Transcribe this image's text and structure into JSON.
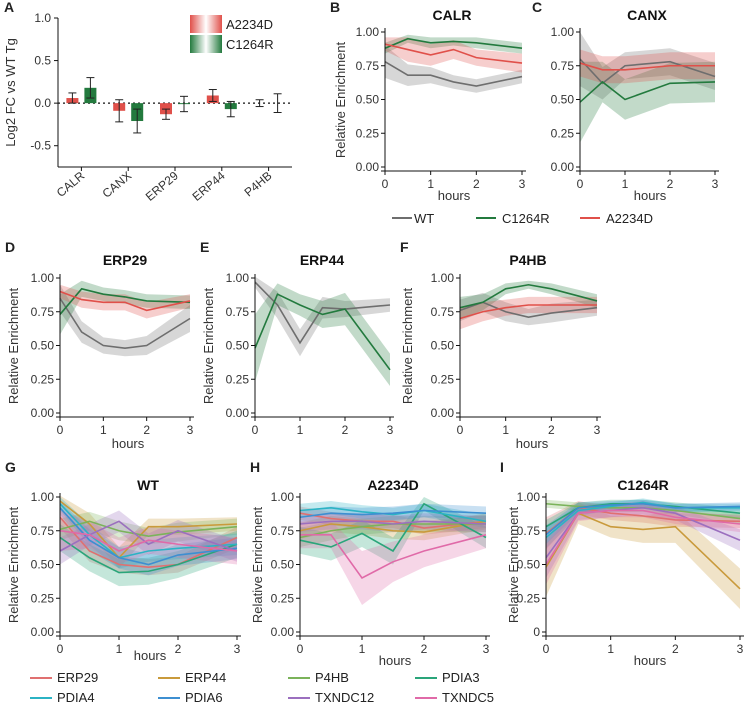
{
  "colors": {
    "WT": "#6e6e6e",
    "C1264R": "#237a3e",
    "A2234D": "#e0504a",
    "ERP29": "#e07070",
    "ERP44": "#c99a3b",
    "P4HB": "#7bb35a",
    "PDIA3": "#2aa57a",
    "PDIA4": "#2bb3c4",
    "PDIA6": "#3d8fd1",
    "TXNDC12": "#9b6fbf",
    "TXNDC5": "#e06aa8"
  },
  "chart_data": [
    {
      "id": "A",
      "panel_label": "A",
      "type": "bar",
      "ylabel": "Log2 FC vs WT Tg",
      "yticks": [
        1.0,
        0.5,
        0.0,
        -0.5
      ],
      "ytick_labels": [
        "1.0",
        "0.5",
        "0.0",
        "-0.5"
      ],
      "ylim": [
        -0.75,
        1.0
      ],
      "categories": [
        "CALR",
        "CANX",
        "ERP29",
        "ERP44",
        "P4HB"
      ],
      "legend": [
        "A2234D",
        "C1264R"
      ],
      "series": [
        {
          "name": "A2234D",
          "values": [
            0.06,
            -0.09,
            -0.13,
            0.09,
            0.0
          ],
          "errors": [
            0.06,
            0.13,
            0.06,
            0.07,
            0.04
          ]
        },
        {
          "name": "C1264R",
          "values": [
            0.18,
            -0.21,
            -0.01,
            -0.07,
            0.0
          ],
          "errors": [
            0.12,
            0.14,
            0.09,
            0.09,
            0.11
          ]
        }
      ]
    },
    {
      "id": "B",
      "panel_label": "B",
      "type": "line",
      "title": "CALR",
      "xlabel": "hours",
      "ylabel": "Relative Enrichment",
      "xticks": [
        0,
        1,
        2,
        3
      ],
      "yticks": [
        0.0,
        0.25,
        0.5,
        0.75,
        1.0
      ],
      "ytick_labels": [
        "0.00",
        "0.25",
        "0.50",
        "0.75",
        "1.00"
      ],
      "x": [
        0,
        0.5,
        1,
        1.5,
        2,
        3
      ],
      "series": [
        {
          "name": "WT",
          "values": [
            0.78,
            0.68,
            0.68,
            0.63,
            0.6,
            0.67
          ],
          "band": [
            0.12,
            0.08,
            0.06,
            0.05,
            0.05,
            0.05
          ]
        },
        {
          "name": "C1264R",
          "values": [
            0.88,
            0.95,
            0.92,
            0.93,
            0.92,
            0.88
          ],
          "band": [
            0.04,
            0.03,
            0.04,
            0.03,
            0.04,
            0.04
          ]
        },
        {
          "name": "A2234D",
          "values": [
            0.91,
            0.87,
            0.83,
            0.87,
            0.81,
            0.77
          ],
          "band": [
            0.05,
            0.09,
            0.08,
            0.07,
            0.06,
            0.07
          ]
        }
      ]
    },
    {
      "id": "C",
      "panel_label": "C",
      "type": "line",
      "title": "CANX",
      "xlabel": "hours",
      "ylabel": "",
      "xticks": [
        0,
        1,
        2,
        3
      ],
      "yticks": [
        0.0,
        0.25,
        0.5,
        0.75,
        1.0
      ],
      "ytick_labels": [
        "0.00",
        "0.25",
        "0.50",
        "0.75",
        "1.00"
      ],
      "x": [
        0,
        0.5,
        1,
        2,
        3
      ],
      "series": [
        {
          "name": "WT",
          "values": [
            0.8,
            0.62,
            0.75,
            0.78,
            0.67
          ],
          "band": [
            0.2,
            0.12,
            0.1,
            0.1,
            0.1
          ]
        },
        {
          "name": "C1264R",
          "values": [
            0.48,
            0.63,
            0.5,
            0.62,
            0.63
          ],
          "band": [
            0.3,
            0.15,
            0.15,
            0.15,
            0.15
          ]
        },
        {
          "name": "A2234D",
          "values": [
            0.77,
            0.72,
            0.72,
            0.75,
            0.75
          ],
          "band": [
            0.1,
            0.1,
            0.1,
            0.1,
            0.1
          ]
        }
      ]
    },
    {
      "id": "D",
      "panel_label": "D",
      "type": "line",
      "title": "ERP29",
      "xlabel": "hours",
      "ylabel": "Relative Enrichment",
      "xticks": [
        0,
        1,
        2,
        3
      ],
      "yticks": [
        0.0,
        0.25,
        0.5,
        0.75,
        1.0
      ],
      "ytick_labels": [
        "0.00",
        "0.25",
        "0.50",
        "0.75",
        "1.00"
      ],
      "x": [
        0,
        0.5,
        1,
        1.5,
        2,
        3
      ],
      "series": [
        {
          "name": "WT",
          "values": [
            0.85,
            0.6,
            0.5,
            0.48,
            0.5,
            0.7
          ],
          "band": [
            0.1,
            0.08,
            0.06,
            0.06,
            0.07,
            0.1
          ]
        },
        {
          "name": "C1264R",
          "values": [
            0.73,
            0.92,
            0.88,
            0.86,
            0.83,
            0.82
          ],
          "band": [
            0.15,
            0.06,
            0.05,
            0.05,
            0.05,
            0.05
          ]
        },
        {
          "name": "A2234D",
          "values": [
            0.9,
            0.84,
            0.82,
            0.82,
            0.76,
            0.83
          ],
          "band": [
            0.05,
            0.06,
            0.06,
            0.06,
            0.06,
            0.05
          ]
        }
      ]
    },
    {
      "id": "E",
      "panel_label": "E",
      "type": "line",
      "title": "ERP44",
      "xlabel": "",
      "ylabel": "Relative Enrichment",
      "xticks": [
        0,
        1,
        2,
        3
      ],
      "yticks": [
        0.0,
        0.25,
        0.5,
        0.75,
        1.0
      ],
      "ytick_labels": [
        "0.00",
        "0.25",
        "0.50",
        "0.75",
        "1.00"
      ],
      "x": [
        0,
        0.5,
        1,
        1.5,
        2,
        3
      ],
      "series": [
        {
          "name": "WT",
          "values": [
            0.97,
            0.8,
            0.52,
            0.78,
            0.77,
            0.8
          ],
          "band": [
            0.04,
            0.1,
            0.1,
            0.08,
            0.06,
            0.05
          ]
        },
        {
          "name": "C1264R",
          "values": [
            0.48,
            0.88,
            0.8,
            0.73,
            0.77,
            0.32
          ],
          "band": [
            0.25,
            0.08,
            0.08,
            0.1,
            0.12,
            0.12
          ]
        }
      ]
    },
    {
      "id": "F",
      "panel_label": "F",
      "type": "line",
      "title": "P4HB",
      "xlabel": "hours",
      "ylabel": "Relative Enrichment",
      "xticks": [
        0,
        1,
        2,
        3
      ],
      "yticks": [
        0.0,
        0.25,
        0.5,
        0.75,
        1.0
      ],
      "ytick_labels": [
        "0.00",
        "0.25",
        "0.50",
        "0.75",
        "1.00"
      ],
      "x": [
        0,
        0.5,
        1,
        1.5,
        2,
        3
      ],
      "series": [
        {
          "name": "WT",
          "values": [
            0.76,
            0.82,
            0.75,
            0.71,
            0.74,
            0.78
          ],
          "band": [
            0.08,
            0.07,
            0.07,
            0.06,
            0.07,
            0.06
          ]
        },
        {
          "name": "C1264R",
          "values": [
            0.78,
            0.82,
            0.92,
            0.95,
            0.92,
            0.83
          ],
          "band": [
            0.08,
            0.06,
            0.04,
            0.03,
            0.04,
            0.05
          ]
        },
        {
          "name": "A2234D",
          "values": [
            0.7,
            0.75,
            0.78,
            0.8,
            0.8,
            0.8
          ],
          "band": [
            0.08,
            0.07,
            0.06,
            0.06,
            0.06,
            0.06
          ]
        }
      ]
    },
    {
      "id": "G",
      "panel_label": "G",
      "type": "line",
      "title": "WT",
      "xlabel": "hours",
      "ylabel": "Relative Enrichment",
      "xticks": [
        0,
        1,
        2,
        3
      ],
      "yticks": [
        0.0,
        0.25,
        0.5,
        0.75,
        1.0
      ],
      "ytick_labels": [
        "0.00",
        "0.25",
        "0.50",
        "0.75",
        "1.00"
      ],
      "x": [
        0,
        0.5,
        1,
        1.5,
        2,
        3
      ],
      "series": [
        {
          "name": "ERP29",
          "values": [
            0.85,
            0.6,
            0.5,
            0.48,
            0.5,
            0.7
          ],
          "band": [
            0.08,
            0.08,
            0.06,
            0.06,
            0.06,
            0.08
          ]
        },
        {
          "name": "ERP44",
          "values": [
            0.97,
            0.8,
            0.55,
            0.78,
            0.78,
            0.8
          ],
          "band": [
            0.04,
            0.08,
            0.08,
            0.06,
            0.06,
            0.05
          ]
        },
        {
          "name": "P4HB",
          "values": [
            0.76,
            0.82,
            0.75,
            0.71,
            0.74,
            0.78
          ],
          "band": [
            0.08,
            0.07,
            0.07,
            0.06,
            0.07,
            0.06
          ]
        },
        {
          "name": "PDIA3",
          "values": [
            0.7,
            0.55,
            0.44,
            0.45,
            0.5,
            0.65
          ],
          "band": [
            0.1,
            0.1,
            0.1,
            0.1,
            0.1,
            0.1
          ]
        },
        {
          "name": "PDIA4",
          "values": [
            0.95,
            0.72,
            0.55,
            0.6,
            0.62,
            0.65
          ],
          "band": [
            0.05,
            0.08,
            0.08,
            0.08,
            0.08,
            0.08
          ]
        },
        {
          "name": "PDIA6",
          "values": [
            0.92,
            0.68,
            0.55,
            0.5,
            0.57,
            0.62
          ],
          "band": [
            0.05,
            0.08,
            0.08,
            0.08,
            0.08,
            0.08
          ]
        },
        {
          "name": "TXNDC12",
          "values": [
            0.6,
            0.72,
            0.82,
            0.65,
            0.75,
            0.6
          ],
          "band": [
            0.1,
            0.08,
            0.08,
            0.08,
            0.08,
            0.08
          ]
        },
        {
          "name": "TXNDC5",
          "values": [
            0.75,
            0.72,
            0.6,
            0.68,
            0.65,
            0.6
          ],
          "band": [
            0.15,
            0.1,
            0.1,
            0.1,
            0.1,
            0.1
          ]
        }
      ]
    },
    {
      "id": "H",
      "panel_label": "H",
      "type": "line",
      "title": "A2234D",
      "xlabel": "hours",
      "ylabel": "Relative Enrichment",
      "xticks": [
        0,
        1,
        2,
        3
      ],
      "yticks": [
        0.0,
        0.25,
        0.5,
        0.75,
        1.0
      ],
      "ytick_labels": [
        "0.00",
        "0.25",
        "0.50",
        "0.75",
        "1.00"
      ],
      "x": [
        0,
        0.5,
        1,
        1.5,
        2,
        3
      ],
      "series": [
        {
          "name": "ERP29",
          "values": [
            0.88,
            0.84,
            0.82,
            0.82,
            0.77,
            0.82
          ],
          "band": [
            0.05,
            0.05,
            0.05,
            0.05,
            0.05,
            0.05
          ]
        },
        {
          "name": "ERP44",
          "values": [
            0.75,
            0.8,
            0.78,
            0.75,
            0.74,
            0.82
          ],
          "band": [
            0.06,
            0.06,
            0.06,
            0.06,
            0.06,
            0.06
          ]
        },
        {
          "name": "P4HB",
          "values": [
            0.7,
            0.75,
            0.78,
            0.8,
            0.8,
            0.8
          ],
          "band": [
            0.07,
            0.07,
            0.06,
            0.06,
            0.06,
            0.06
          ]
        },
        {
          "name": "PDIA3",
          "values": [
            0.68,
            0.63,
            0.73,
            0.6,
            0.95,
            0.7
          ],
          "band": [
            0.1,
            0.1,
            0.1,
            0.1,
            0.05,
            0.08
          ]
        },
        {
          "name": "PDIA4",
          "values": [
            0.9,
            0.92,
            0.89,
            0.87,
            0.9,
            0.82
          ],
          "band": [
            0.05,
            0.05,
            0.05,
            0.05,
            0.05,
            0.05
          ]
        },
        {
          "name": "PDIA6",
          "values": [
            0.85,
            0.88,
            0.87,
            0.88,
            0.9,
            0.88
          ],
          "band": [
            0.05,
            0.05,
            0.05,
            0.05,
            0.05,
            0.05
          ]
        },
        {
          "name": "TXNDC12",
          "values": [
            0.8,
            0.82,
            0.82,
            0.8,
            0.82,
            0.8
          ],
          "band": [
            0.06,
            0.06,
            0.06,
            0.06,
            0.06,
            0.06
          ]
        },
        {
          "name": "TXNDC5",
          "values": [
            0.72,
            0.72,
            0.4,
            0.52,
            0.6,
            0.72
          ],
          "band": [
            0.1,
            0.1,
            0.2,
            0.15,
            0.12,
            0.1
          ]
        }
      ]
    },
    {
      "id": "I",
      "panel_label": "I",
      "type": "line",
      "title": "C1264R",
      "xlabel": "hours",
      "ylabel": "Relative Enrichment",
      "xticks": [
        0,
        1,
        2,
        3
      ],
      "yticks": [
        0,
        0.25,
        0.5,
        0.75,
        1.0
      ],
      "ytick_labels": [
        "0",
        "0.25",
        "0.50",
        "0.75",
        "1.00"
      ],
      "x": [
        0,
        0.5,
        1,
        1.5,
        2,
        3
      ],
      "series": [
        {
          "name": "ERP29",
          "values": [
            0.73,
            0.92,
            0.88,
            0.86,
            0.83,
            0.82
          ],
          "band": [
            0.12,
            0.05,
            0.05,
            0.05,
            0.05,
            0.05
          ]
        },
        {
          "name": "ERP44",
          "values": [
            0.48,
            0.88,
            0.78,
            0.76,
            0.78,
            0.32
          ],
          "band": [
            0.22,
            0.08,
            0.08,
            0.1,
            0.12,
            0.15
          ]
        },
        {
          "name": "P4HB",
          "values": [
            0.95,
            0.93,
            0.92,
            0.92,
            0.9,
            0.84
          ],
          "band": [
            0.03,
            0.03,
            0.03,
            0.03,
            0.03,
            0.04
          ]
        },
        {
          "name": "PDIA3",
          "values": [
            0.78,
            0.92,
            0.95,
            0.95,
            0.93,
            0.88
          ],
          "band": [
            0.05,
            0.04,
            0.03,
            0.03,
            0.03,
            0.04
          ]
        },
        {
          "name": "PDIA4",
          "values": [
            0.7,
            0.9,
            0.93,
            0.96,
            0.92,
            0.92
          ],
          "band": [
            0.08,
            0.04,
            0.03,
            0.03,
            0.03,
            0.03
          ]
        },
        {
          "name": "PDIA6",
          "values": [
            0.72,
            0.92,
            0.94,
            0.95,
            0.92,
            0.93
          ],
          "band": [
            0.07,
            0.04,
            0.03,
            0.03,
            0.03,
            0.03
          ]
        },
        {
          "name": "TXNDC12",
          "values": [
            0.55,
            0.88,
            0.9,
            0.92,
            0.88,
            0.68
          ],
          "band": [
            0.15,
            0.05,
            0.05,
            0.05,
            0.05,
            0.08
          ]
        },
        {
          "name": "TXNDC5",
          "values": [
            0.5,
            0.88,
            0.9,
            0.9,
            0.85,
            0.8
          ],
          "band": [
            0.15,
            0.06,
            0.05,
            0.05,
            0.05,
            0.06
          ]
        }
      ]
    }
  ],
  "legend_top": [
    "WT",
    "C1264R",
    "A2234D"
  ],
  "legend_bottom": [
    "ERP29",
    "ERP44",
    "P4HB",
    "PDIA3",
    "PDIA4",
    "PDIA6",
    "TXNDC12",
    "TXNDC5"
  ]
}
